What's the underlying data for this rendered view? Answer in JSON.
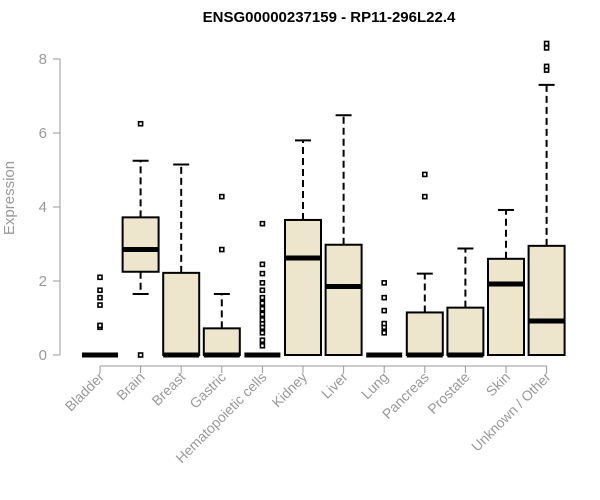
{
  "chart_data": {
    "type": "box",
    "title": "ENSG00000237159 - RP11-296L22.4",
    "ylabel": "Expression",
    "xlabel": "",
    "ylim": [
      0,
      8.5
    ],
    "yticks": [
      0,
      2,
      4,
      6,
      8
    ],
    "grid": false,
    "categories": [
      "Bladder",
      "Brain",
      "Breast",
      "Gastric",
      "Hematopoietic cells",
      "Kidney",
      "Liver",
      "Lung",
      "Pancreas",
      "Prostate",
      "Skin",
      "Unknown / Other"
    ],
    "boxes": [
      {
        "q1": 0,
        "median": 0,
        "q3": 0,
        "whisker_low": 0,
        "whisker_high": 0,
        "outliers": [
          0.75,
          0.8,
          1.35,
          1.55,
          1.75,
          2.1
        ]
      },
      {
        "q1": 2.25,
        "median": 2.85,
        "q3": 3.72,
        "whisker_low": 1.65,
        "whisker_high": 5.25,
        "outliers": [
          0.0,
          6.25
        ]
      },
      {
        "q1": 0,
        "median": 0,
        "q3": 2.22,
        "whisker_low": 0,
        "whisker_high": 5.15,
        "outliers": []
      },
      {
        "q1": 0,
        "median": 0,
        "q3": 0.72,
        "whisker_low": 0,
        "whisker_high": 1.65,
        "outliers": [
          2.85,
          4.28
        ]
      },
      {
        "q1": 0,
        "median": 0,
        "q3": 0,
        "whisker_low": 0,
        "whisker_high": 0,
        "outliers": [
          0.25,
          0.4,
          0.6,
          0.75,
          0.85,
          0.95,
          1.1,
          1.25,
          1.4,
          1.55,
          1.75,
          1.95,
          2.2,
          2.45,
          3.55
        ]
      },
      {
        "q1": 0,
        "median": 2.62,
        "q3": 3.65,
        "whisker_low": 0,
        "whisker_high": 5.8,
        "outliers": []
      },
      {
        "q1": 0,
        "median": 1.85,
        "q3": 2.98,
        "whisker_low": 0,
        "whisker_high": 6.48,
        "outliers": []
      },
      {
        "q1": 0,
        "median": 0,
        "q3": 0,
        "whisker_low": 0,
        "whisker_high": 0,
        "outliers": [
          0.6,
          0.75,
          0.85,
          1.2,
          1.55,
          1.95
        ]
      },
      {
        "q1": 0,
        "median": 0,
        "q3": 1.15,
        "whisker_low": 0,
        "whisker_high": 2.2,
        "outliers": [
          4.28,
          4.88
        ]
      },
      {
        "q1": 0,
        "median": 0,
        "q3": 1.28,
        "whisker_low": 0,
        "whisker_high": 2.88,
        "outliers": []
      },
      {
        "q1": 0,
        "median": 1.92,
        "q3": 2.6,
        "whisker_low": 0,
        "whisker_high": 3.92,
        "outliers": []
      },
      {
        "q1": 0,
        "median": 0.92,
        "q3": 2.95,
        "whisker_low": 0,
        "whisker_high": 7.3,
        "outliers": [
          7.7,
          7.8,
          8.3,
          8.42
        ]
      }
    ]
  }
}
